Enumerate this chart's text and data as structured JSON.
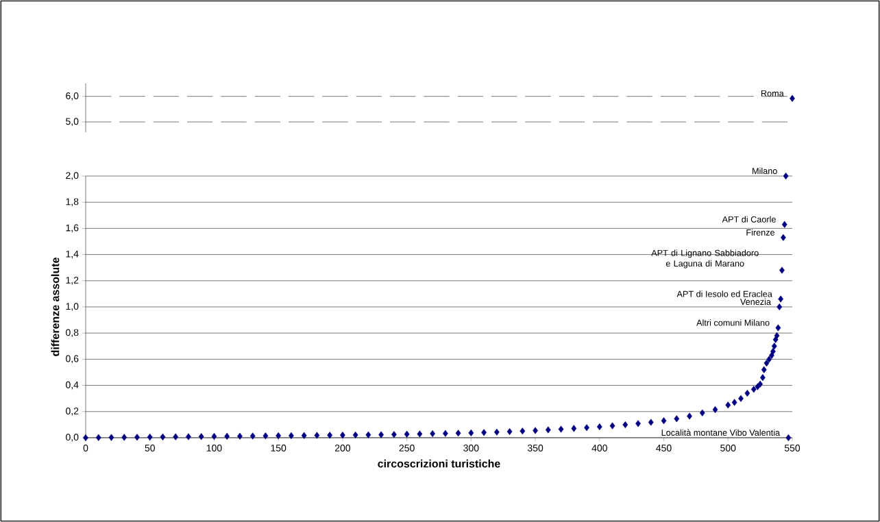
{
  "chart_data": [
    {
      "type": "scatter",
      "marker": "diamond",
      "xlim": [
        0,
        550
      ],
      "ylim": [
        4.6,
        6.5
      ],
      "tick_labels": "y",
      "grid": "y",
      "yticks": [
        {
          "value": 5,
          "label": "5,0"
        },
        {
          "value": 6,
          "label": "6,0"
        }
      ],
      "series": [
        {
          "color": "#000080",
          "x": [
            550
          ],
          "values": [
            5.92
          ]
        }
      ],
      "annotations": [
        {
          "text": "Roma",
          "x": 550,
          "y": 5.92
        }
      ]
    },
    {
      "type": "scatter",
      "marker": "diamond",
      "xlim": [
        0,
        550
      ],
      "ylim": [
        0,
        2
      ],
      "grid": "y",
      "xlabel": "circoscrizioni turistiche",
      "ylabel": "differenze assolute",
      "xticks": [
        0,
        50,
        100,
        150,
        200,
        250,
        300,
        350,
        400,
        450,
        500,
        550
      ],
      "yticks": [
        {
          "value": 0,
          "label": "0,0"
        },
        {
          "value": 0.2,
          "label": "0,2"
        },
        {
          "value": 0.4,
          "label": "0,4"
        },
        {
          "value": 0.6,
          "label": "0,6"
        },
        {
          "value": 0.8,
          "label": "0,8"
        },
        {
          "value": 1.0,
          "label": "1,0"
        },
        {
          "value": 1.2,
          "label": "1,2"
        },
        {
          "value": 1.4,
          "label": "1,4"
        },
        {
          "value": 1.6,
          "label": "1,6"
        },
        {
          "value": 1.8,
          "label": "1,8"
        },
        {
          "value": 2.0,
          "label": "2,0"
        }
      ],
      "series": [
        {
          "color": "#000080",
          "x": [
            0,
            10,
            20,
            30,
            40,
            50,
            60,
            70,
            80,
            90,
            100,
            110,
            120,
            130,
            140,
            150,
            160,
            170,
            180,
            190,
            200,
            210,
            220,
            230,
            240,
            250,
            260,
            270,
            280,
            290,
            300,
            310,
            320,
            330,
            340,
            350,
            360,
            370,
            380,
            390,
            400,
            410,
            420,
            430,
            440,
            450,
            460,
            470,
            480,
            490,
            500,
            505,
            510,
            515,
            520,
            523,
            525,
            527,
            528,
            530,
            532,
            534,
            535,
            536,
            537,
            538,
            539,
            540,
            541,
            542,
            543,
            544,
            545,
            547
          ],
          "values": [
            0.0,
            0.001,
            0.002,
            0.003,
            0.004,
            0.005,
            0.006,
            0.007,
            0.008,
            0.009,
            0.01,
            0.011,
            0.012,
            0.013,
            0.014,
            0.015,
            0.016,
            0.017,
            0.018,
            0.019,
            0.02,
            0.021,
            0.022,
            0.023,
            0.025,
            0.027,
            0.029,
            0.031,
            0.033,
            0.035,
            0.037,
            0.04,
            0.043,
            0.047,
            0.051,
            0.055,
            0.06,
            0.065,
            0.071,
            0.077,
            0.084,
            0.091,
            0.099,
            0.108,
            0.118,
            0.13,
            0.145,
            0.165,
            0.19,
            0.215,
            0.25,
            0.27,
            0.3,
            0.34,
            0.37,
            0.39,
            0.41,
            0.46,
            0.52,
            0.57,
            0.6,
            0.63,
            0.66,
            0.7,
            0.75,
            0.78,
            0.84,
            1.0,
            1.06,
            1.28,
            1.53,
            1.63,
            2.0,
            0.0
          ]
        }
      ],
      "annotations": [
        {
          "text": "Milano",
          "x": 545,
          "y": 2.0
        },
        {
          "text": "APT di Caorle",
          "x": 544,
          "y": 1.63
        },
        {
          "text": "Firenze",
          "x": 543,
          "y": 1.53
        },
        {
          "text": "APT di Lignano Sabbiadoro e Laguna di Marano",
          "x": 542,
          "y": 1.28
        },
        {
          "text": "APT di Iesolo ed Eraclea",
          "x": 541,
          "y": 1.06
        },
        {
          "text": "Venezia",
          "x": 540,
          "y": 1.0
        },
        {
          "text": "Altri comuni Milano",
          "x": 539,
          "y": 0.84
        },
        {
          "text": "Località montane Vibo Valentia",
          "x": 547,
          "y": 0.0
        }
      ]
    }
  ]
}
